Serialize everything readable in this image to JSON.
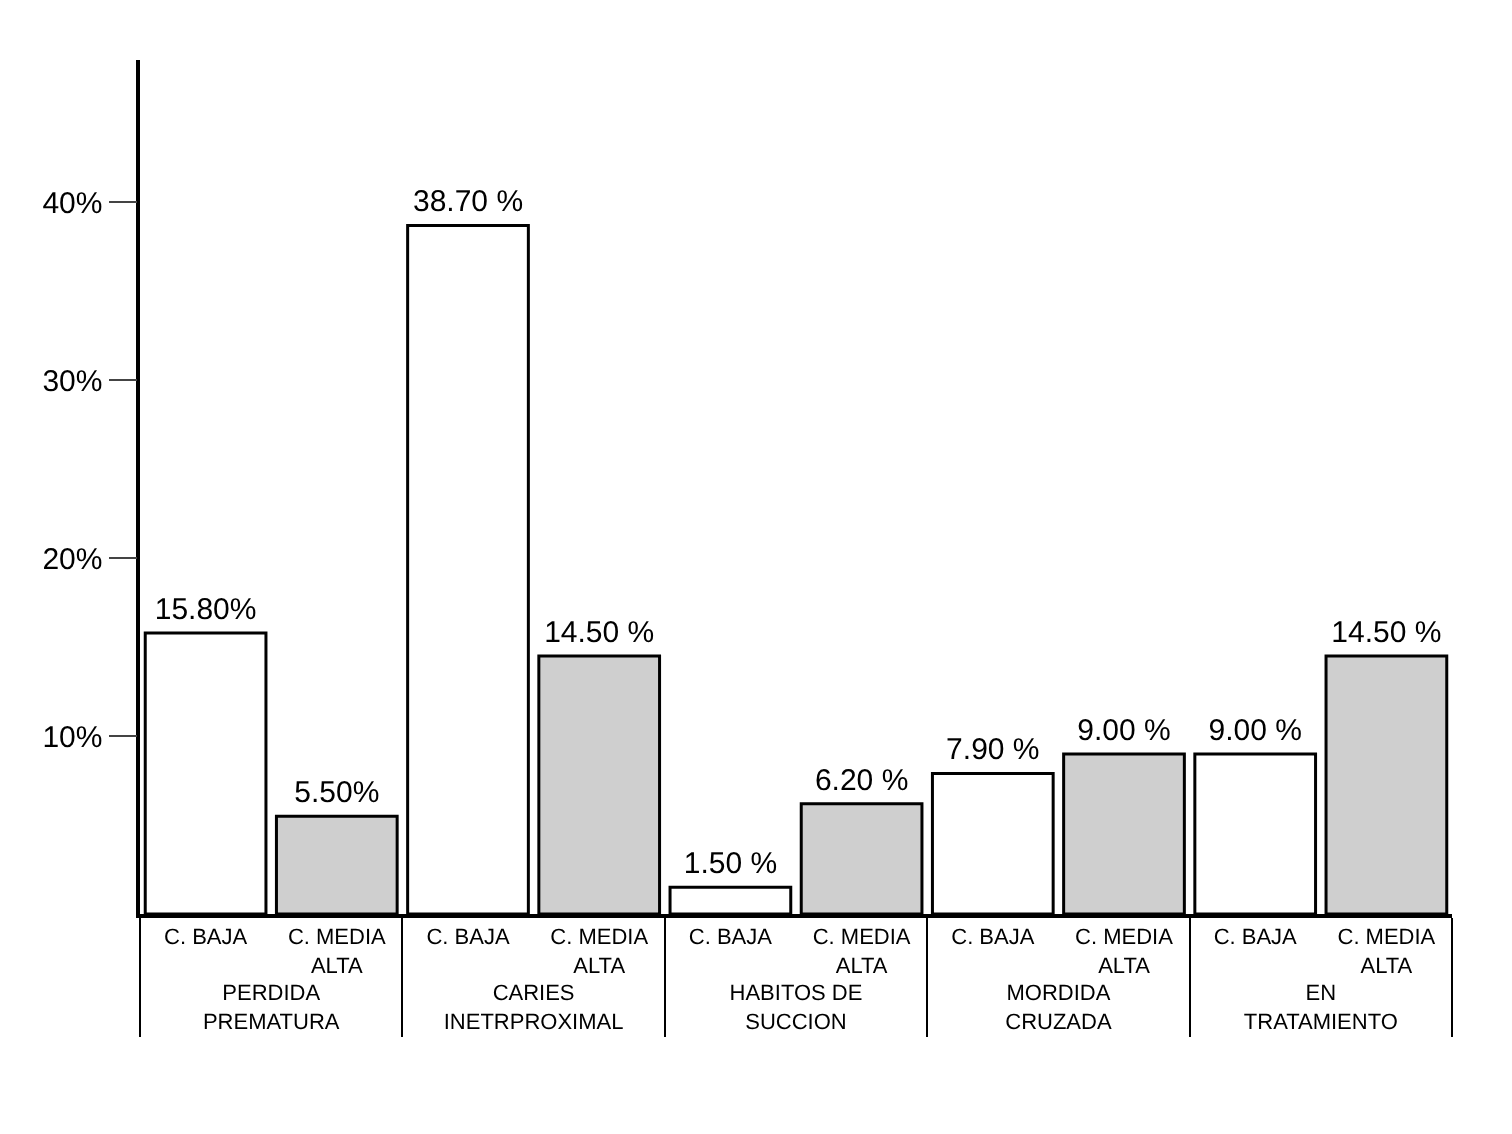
{
  "chart_data": {
    "type": "bar",
    "categories": [
      "PERDIDA PREMATURA",
      "CARIES INETRPROXIMAL",
      "HABITOS DE SUCCION",
      "MORDIDA CRUZADA",
      "EN TRATAMIENTO"
    ],
    "series": [
      {
        "name": "C. BAJA",
        "color": "#ffffff",
        "values": [
          15.8,
          38.7,
          1.5,
          7.9,
          9.0
        ],
        "value_labels": [
          "15.80%",
          "38.70 %",
          "1.50 %",
          "7.90 %",
          "9.00 %"
        ]
      },
      {
        "name": "C. MEDIA ALTA",
        "color": "#cfcfcf",
        "values": [
          5.5,
          14.5,
          6.2,
          9.0,
          14.5
        ],
        "value_labels": [
          "5.50%",
          "14.50 %",
          "6.20 %",
          "9.00 %",
          "14.50 %"
        ]
      }
    ],
    "ylim": [
      0,
      48
    ],
    "yticks": [
      {
        "value": 10,
        "label": "10%"
      },
      {
        "value": 20,
        "label": "20%"
      },
      {
        "value": 30,
        "label": "30%"
      },
      {
        "value": 40,
        "label": "40%"
      }
    ],
    "legend": false
  }
}
